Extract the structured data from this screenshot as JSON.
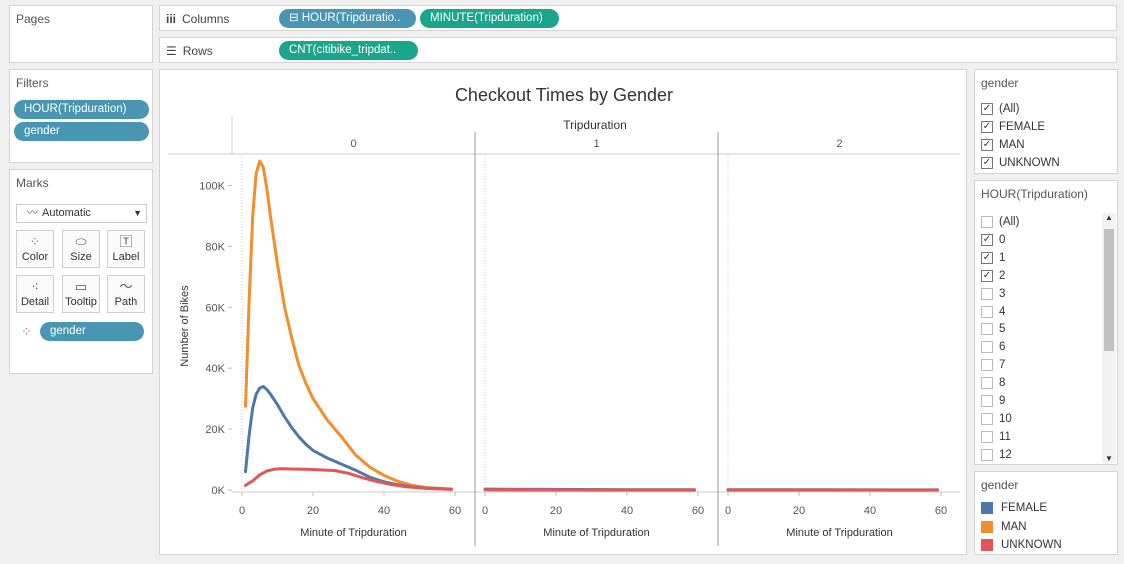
{
  "pages": {
    "title": "Pages"
  },
  "columns": {
    "label": "Columns",
    "pills": [
      "⊟ HOUR(Tripduratio..",
      "MINUTE(Tripduration)"
    ]
  },
  "rows": {
    "label": "Rows",
    "pills": [
      "CNT(citibike_tripdat.."
    ]
  },
  "filters": {
    "title": "Filters",
    "pills": [
      "HOUR(Tripduration)",
      "gender"
    ]
  },
  "marks": {
    "title": "Marks",
    "type_select": "Automatic",
    "buttons": [
      "Color",
      "Size",
      "Label",
      "Detail",
      "Tooltip",
      "Path"
    ],
    "color_pill": "gender"
  },
  "gender_filter": {
    "title": "gender",
    "items": [
      {
        "label": "(All)",
        "checked": true
      },
      {
        "label": "FEMALE",
        "checked": true
      },
      {
        "label": "MAN",
        "checked": true
      },
      {
        "label": "UNKNOWN",
        "checked": true
      }
    ]
  },
  "hour_filter": {
    "title": "HOUR(Tripduration)",
    "items": [
      {
        "label": "(All)",
        "checked": false
      },
      {
        "label": "0",
        "checked": true
      },
      {
        "label": "1",
        "checked": true
      },
      {
        "label": "2",
        "checked": true
      },
      {
        "label": "3",
        "checked": false
      },
      {
        "label": "4",
        "checked": false
      },
      {
        "label": "5",
        "checked": false
      },
      {
        "label": "6",
        "checked": false
      },
      {
        "label": "7",
        "checked": false
      },
      {
        "label": "8",
        "checked": false
      },
      {
        "label": "9",
        "checked": false
      },
      {
        "label": "10",
        "checked": false
      },
      {
        "label": "11",
        "checked": false
      },
      {
        "label": "12",
        "checked": false
      }
    ]
  },
  "legend": {
    "title": "gender",
    "items": [
      {
        "label": "FEMALE",
        "color": "#4e79a7"
      },
      {
        "label": "MAN",
        "color": "#f28e2b"
      },
      {
        "label": "UNKNOWN",
        "color": "#e15759"
      }
    ]
  },
  "chart_data": {
    "type": "line",
    "title": "Checkout Times by Gender",
    "column_header": "Tripduration",
    "facets": [
      "0",
      "1",
      "2"
    ],
    "xlabel": "Minute of Tripduration",
    "ylabel": "Number of Bikes",
    "xlim": [
      0,
      60
    ],
    "ylim": [
      0,
      110000
    ],
    "x_ticks": [
      0,
      20,
      40,
      60
    ],
    "y_ticks": [
      0,
      20000,
      40000,
      60000,
      80000,
      100000
    ],
    "y_tick_labels": [
      "0K",
      "20K",
      "40K",
      "60K",
      "80K",
      "100K"
    ],
    "series": [
      {
        "name": "MAN",
        "color": "#f28e2b",
        "points": {
          "0": [
            [
              1,
              27500
            ],
            [
              2,
              62000
            ],
            [
              3,
              90000
            ],
            [
              4,
              104000
            ],
            [
              5,
              108000
            ],
            [
              6,
              106000
            ],
            [
              7,
              99000
            ],
            [
              8,
              90000
            ],
            [
              10,
              74000
            ],
            [
              12,
              60000
            ],
            [
              14,
              50000
            ],
            [
              16,
              41000
            ],
            [
              18,
              35000
            ],
            [
              20,
              30000
            ],
            [
              24,
              23000
            ],
            [
              28,
              17500
            ],
            [
              32,
              11500
            ],
            [
              36,
              7500
            ],
            [
              40,
              4800
            ],
            [
              44,
              2800
            ],
            [
              48,
              1500
            ],
            [
              52,
              800
            ],
            [
              56,
              500
            ],
            [
              59,
              300
            ]
          ],
          "1": [
            [
              0,
              150
            ],
            [
              30,
              50
            ],
            [
              59,
              20
            ]
          ],
          "2": [
            [
              0,
              30
            ],
            [
              30,
              10
            ],
            [
              59,
              5
            ]
          ]
        }
      },
      {
        "name": "FEMALE",
        "color": "#4e79a7",
        "points": {
          "0": [
            [
              1,
              6000
            ],
            [
              2,
              18000
            ],
            [
              3,
              27000
            ],
            [
              4,
              31500
            ],
            [
              5,
              33500
            ],
            [
              6,
              34000
            ],
            [
              7,
              33000
            ],
            [
              8,
              31500
            ],
            [
              10,
              28000
            ],
            [
              12,
              24000
            ],
            [
              14,
              20500
            ],
            [
              16,
              17500
            ],
            [
              18,
              15000
            ],
            [
              20,
              13000
            ],
            [
              24,
              10500
            ],
            [
              28,
              8500
            ],
            [
              32,
              6500
            ],
            [
              36,
              4200
            ],
            [
              40,
              2700
            ],
            [
              44,
              1700
            ],
            [
              48,
              1000
            ],
            [
              52,
              600
            ],
            [
              56,
              400
            ],
            [
              59,
              300
            ]
          ],
          "1": [
            [
              0,
              300
            ],
            [
              20,
              200
            ],
            [
              40,
              100
            ],
            [
              59,
              60
            ]
          ],
          "2": [
            [
              0,
              80
            ],
            [
              30,
              50
            ],
            [
              59,
              30
            ]
          ]
        }
      },
      {
        "name": "UNKNOWN",
        "color": "#e15759",
        "points": {
          "0": [
            [
              1,
              1500
            ],
            [
              3,
              3000
            ],
            [
              5,
              5000
            ],
            [
              7,
              6200
            ],
            [
              9,
              6800
            ],
            [
              11,
              7000
            ],
            [
              14,
              6900
            ],
            [
              18,
              6800
            ],
            [
              22,
              6600
            ],
            [
              26,
              6400
            ],
            [
              30,
              5500
            ],
            [
              34,
              4000
            ],
            [
              38,
              2800
            ],
            [
              42,
              1800
            ],
            [
              46,
              1100
            ],
            [
              50,
              700
            ],
            [
              54,
              400
            ],
            [
              59,
              200
            ]
          ],
          "1": [
            [
              0,
              50
            ],
            [
              59,
              10
            ]
          ],
          "2": [
            [
              0,
              10
            ],
            [
              59,
              5
            ]
          ]
        }
      }
    ]
  }
}
